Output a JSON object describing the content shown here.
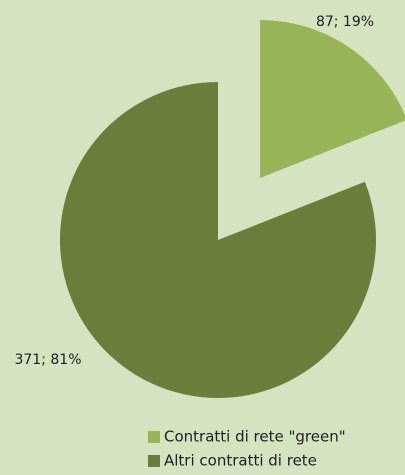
{
  "chart_data": {
    "type": "pie",
    "categories": [
      "Contratti di rete \"green\"",
      "Altri contratti di rete"
    ],
    "values": [
      87,
      371
    ],
    "value_labels": [
      "87; 19%",
      "371; 81%"
    ],
    "colors": [
      "#97b556",
      "#6b7d3b"
    ],
    "legend": "bottom-right"
  }
}
